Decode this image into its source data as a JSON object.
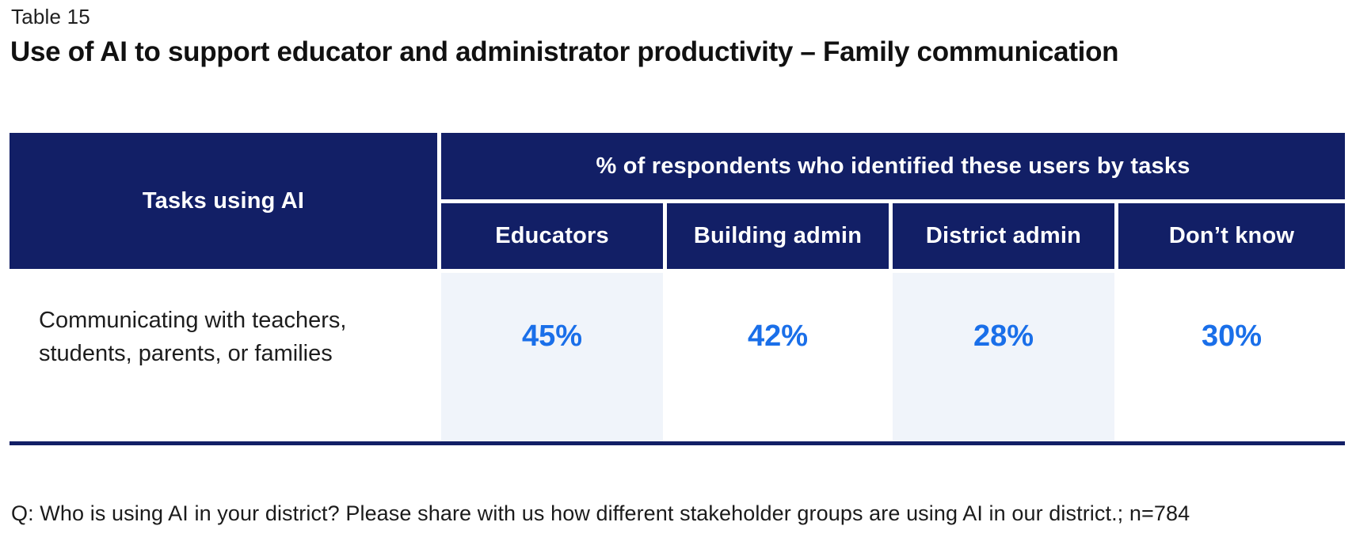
{
  "page": {
    "table_number": "Table 15",
    "title": "Use of AI to support educator and administrator productivity – Family communication",
    "footnote": "Q: Who is using AI in your district?  Please share with us how different stakeholder groups are using AI in our district.; n=784"
  },
  "table": {
    "row_header_label": "Tasks using AI",
    "group_header": "% of respondents who identified these users by tasks",
    "columns": [
      "Educators",
      "Building admin",
      "District admin",
      "Don’t know"
    ],
    "rows": [
      {
        "task": "Communicating with teachers, students, parents, or families",
        "values": [
          "45%",
          "42%",
          "28%",
          "30%"
        ]
      }
    ]
  },
  "colors": {
    "header_navy": "#121f66",
    "value_blue": "#1a6fe9",
    "shaded_column": "#f0f4fa"
  },
  "chart_data": {
    "type": "table",
    "title": "Use of AI to support educator and administrator productivity – Family communication",
    "group_header": "% of respondents who identified these users by tasks",
    "columns": [
      "Tasks using AI",
      "Educators",
      "Building admin",
      "District admin",
      "Don’t know"
    ],
    "rows": [
      [
        "Communicating with teachers, students, parents, or families",
        45,
        42,
        28,
        30
      ]
    ],
    "units": "percent",
    "n": 784
  }
}
